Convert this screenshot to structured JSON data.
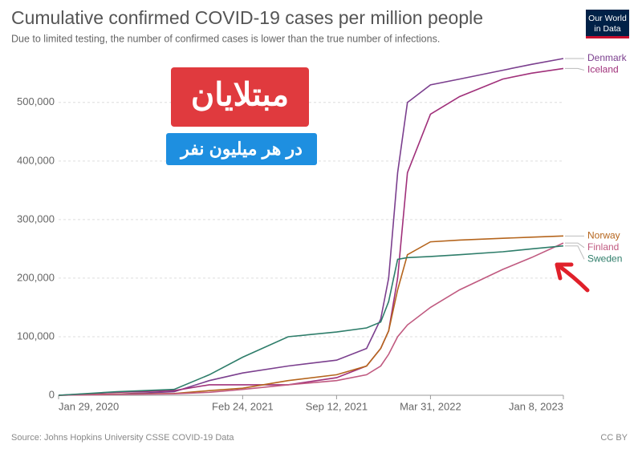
{
  "chart_data": {
    "type": "line",
    "title": "Cumulative confirmed COVID-19 cases per million people",
    "subtitle": "Due to limited testing, the number of confirmed cases is lower than the true number of infections.",
    "source": "Source: Johns Hopkins University CSSE COVID-19 Data",
    "license": "CC BY",
    "logo": [
      "Our World",
      "in Data"
    ],
    "annotations": [
      "مبتلایان",
      "در هر میلیون نفر"
    ],
    "x": [
      "2020-01-29",
      "2020-06-01",
      "2020-10-01",
      "2020-12-15",
      "2021-02-24",
      "2021-06-01",
      "2021-09-12",
      "2021-11-15",
      "2021-12-15",
      "2022-01-01",
      "2022-01-20",
      "2022-02-10",
      "2022-03-31",
      "2022-06-01",
      "2022-09-01",
      "2022-11-01",
      "2023-01-08"
    ],
    "series": [
      {
        "name": "Denmark",
        "color": "#7b3f8e",
        "values": [
          0,
          2000,
          6000,
          25000,
          38000,
          50000,
          60000,
          80000,
          130000,
          200000,
          380000,
          500000,
          530000,
          540000,
          555000,
          565000,
          575000
        ]
      },
      {
        "name": "Iceland",
        "color": "#a0307a",
        "values": [
          0,
          5000,
          8000,
          18000,
          18000,
          18000,
          30000,
          50000,
          80000,
          110000,
          200000,
          380000,
          480000,
          510000,
          540000,
          550000,
          558000
        ]
      },
      {
        "name": "Norway",
        "color": "#b5651d",
        "values": [
          0,
          2000,
          3000,
          8000,
          12000,
          25000,
          35000,
          50000,
          80000,
          110000,
          180000,
          240000,
          262000,
          265000,
          268000,
          270000,
          272000
        ]
      },
      {
        "name": "Finland",
        "color": "#c05a80",
        "values": [
          0,
          1500,
          2500,
          5000,
          10000,
          18000,
          25000,
          35000,
          50000,
          70000,
          100000,
          120000,
          150000,
          180000,
          215000,
          235000,
          260000
        ]
      },
      {
        "name": "Sweden",
        "color": "#2e7d6a",
        "values": [
          0,
          6000,
          10000,
          35000,
          65000,
          100000,
          108000,
          115000,
          125000,
          160000,
          232000,
          235000,
          237000,
          240000,
          245000,
          250000,
          255000
        ]
      }
    ],
    "xlim": [
      "2020-01-29",
      "2023-01-08"
    ],
    "xticks": [
      {
        "value": "2020-01-29",
        "label": "Jan 29, 2020"
      },
      {
        "value": "2021-02-24",
        "label": "Feb 24, 2021"
      },
      {
        "value": "2021-09-12",
        "label": "Sep 12, 2021"
      },
      {
        "value": "2022-03-31",
        "label": "Mar 31, 2022"
      },
      {
        "value": "2023-01-08",
        "label": "Jan 8, 2023"
      }
    ],
    "ylim": [
      0,
      575000
    ],
    "yticks": [
      0,
      {
        "value": 100000,
        "label": "100,000"
      },
      {
        "value": 200000,
        "label": "200,000"
      },
      {
        "value": 300000,
        "label": "300,000"
      },
      {
        "value": 400000,
        "label": "400,000"
      },
      {
        "value": 500000,
        "label": "500,000"
      }
    ],
    "grid": true
  }
}
